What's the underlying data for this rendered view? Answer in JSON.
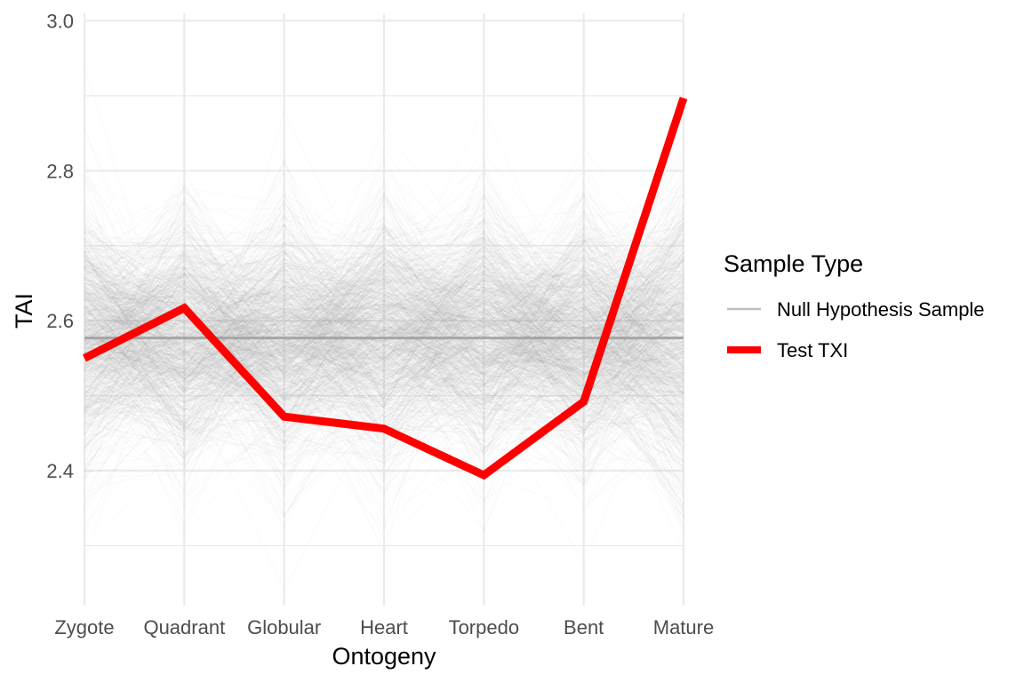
{
  "chart_data": {
    "type": "line",
    "xlabel": "Ontogeny",
    "ylabel": "TAI",
    "categories": [
      "Zygote",
      "Quadrant",
      "Globular",
      "Heart",
      "Torpedo",
      "Bent",
      "Mature"
    ],
    "ylim": [
      2.22,
      3.01
    ],
    "yticks": [
      "2.4",
      "2.6",
      "2.8",
      "3.0"
    ],
    "grid": true,
    "legend": {
      "title": "Sample Type",
      "placement": "right",
      "items": [
        {
          "label": "Null Hypothesis Sample",
          "color": "#bfbfbf"
        },
        {
          "label": "Test TXI",
          "color": "#ff0000"
        }
      ]
    },
    "null_sample_mean": 2.577,
    "null_sample_sd": [
      0.085,
      0.085,
      0.085,
      0.085,
      0.085,
      0.08,
      0.1
    ],
    "series": [
      {
        "name": "Test TXI",
        "color": "#ff0000",
        "values": [
          2.55,
          2.617,
          2.472,
          2.456,
          2.394,
          2.492,
          2.897
        ]
      }
    ],
    "colors": {
      "null": "#a6a6a6",
      "null_mean": "#a0a0a0",
      "test": "#ff0000",
      "grid": "#ebebeb"
    }
  }
}
